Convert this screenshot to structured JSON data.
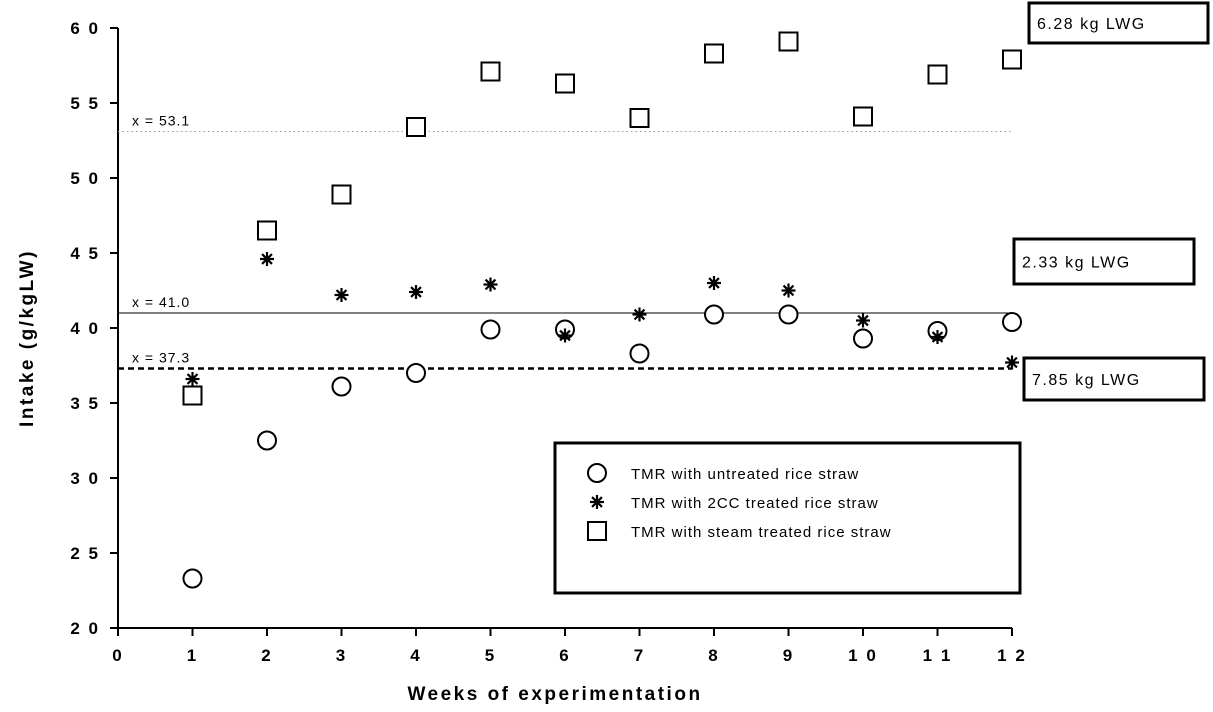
{
  "chart_data": {
    "type": "scatter",
    "title": "",
    "xlabel": "Weeks of experimentation",
    "ylabel": "Intake (g/kgLW)",
    "xlim": [
      0,
      12
    ],
    "ylim": [
      20,
      60
    ],
    "xticks": [
      0,
      1,
      2,
      3,
      4,
      5,
      6,
      7,
      8,
      9,
      10,
      11,
      12
    ],
    "yticks": [
      20,
      25,
      30,
      35,
      40,
      45,
      50,
      55,
      60
    ],
    "grid": false,
    "legend_position": "bottom-right",
    "series": [
      {
        "name": "TMR with untreated rice straw",
        "marker": "circle",
        "x": [
          1,
          2,
          3,
          4,
          5,
          6,
          7,
          8,
          9,
          10,
          11,
          12
        ],
        "y": [
          23.3,
          32.5,
          36.1,
          37.0,
          39.9,
          39.9,
          38.3,
          40.9,
          40.9,
          39.3,
          39.8,
          40.4
        ]
      },
      {
        "name": "TMR with 2CC treated rice straw",
        "marker": "asterisk",
        "x": [
          1,
          2,
          3,
          4,
          5,
          6,
          7,
          8,
          9,
          10,
          11,
          12
        ],
        "y": [
          36.6,
          44.6,
          42.2,
          42.4,
          42.9,
          39.5,
          40.9,
          43.0,
          42.5,
          40.5,
          39.4,
          37.7
        ]
      },
      {
        "name": "TMR with steam treated rice straw",
        "marker": "square",
        "x": [
          1,
          2,
          3,
          4,
          5,
          6,
          7,
          8,
          9,
          10,
          11,
          12
        ],
        "y": [
          35.5,
          46.5,
          48.9,
          53.4,
          57.1,
          56.3,
          54.0,
          58.3,
          59.1,
          54.1,
          56.9,
          57.9
        ]
      }
    ],
    "reference_lines": [
      {
        "label": "x =  53.1",
        "y": 53.1,
        "style": "dotted"
      },
      {
        "label": "x = 41.0",
        "y": 41.0,
        "style": "solid"
      },
      {
        "label": "x = 37.3",
        "y": 37.3,
        "style": "dashed"
      }
    ],
    "annotations": [
      {
        "text": "6.28 kg LWG",
        "series": "TMR with steam treated rice straw"
      },
      {
        "text": "2.33 kg LWG",
        "series": "TMR with 2CC treated rice straw"
      },
      {
        "text": "7.85 kg LWG",
        "series": "TMR with untreated rice straw"
      }
    ]
  }
}
